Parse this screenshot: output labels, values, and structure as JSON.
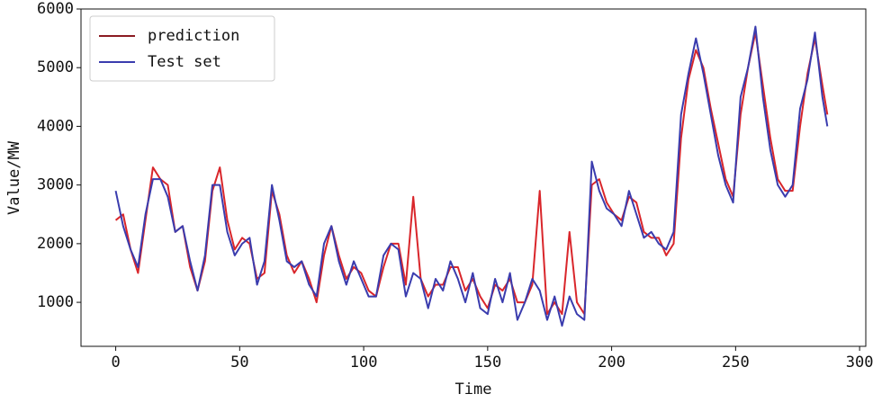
{
  "chart_data": {
    "type": "line",
    "x_label": "Time",
    "y_label": "Value/MW",
    "x": [
      0,
      3,
      6,
      9,
      12,
      15,
      18,
      21,
      24,
      27,
      30,
      33,
      36,
      39,
      42,
      45,
      48,
      51,
      54,
      57,
      60,
      63,
      66,
      69,
      72,
      75,
      78,
      81,
      84,
      87,
      90,
      93,
      96,
      99,
      102,
      105,
      108,
      111,
      114,
      117,
      120,
      123,
      126,
      129,
      132,
      135,
      138,
      141,
      144,
      147,
      150,
      153,
      156,
      159,
      162,
      165,
      168,
      171,
      174,
      177,
      180,
      183,
      186,
      189,
      192,
      195,
      198,
      201,
      204,
      207,
      210,
      213,
      216,
      219,
      222,
      225,
      228,
      231,
      234,
      237,
      240,
      243,
      246,
      249,
      252,
      255,
      258,
      261,
      264,
      267,
      270,
      273,
      276,
      279,
      282,
      285,
      287
    ],
    "series": [
      {
        "name": "prediction",
        "color": "#d9262b",
        "legend_color": "#8b1a22",
        "values": [
          2400,
          2500,
          1900,
          1500,
          2400,
          3300,
          3100,
          3000,
          2200,
          2300,
          1600,
          1200,
          1700,
          2900,
          3300,
          2400,
          1900,
          2100,
          2000,
          1400,
          1500,
          2900,
          2500,
          1800,
          1500,
          1700,
          1400,
          1000,
          1800,
          2300,
          1800,
          1400,
          1600,
          1500,
          1200,
          1100,
          1600,
          2000,
          2000,
          1300,
          2800,
          1400,
          1100,
          1300,
          1300,
          1600,
          1600,
          1200,
          1400,
          1100,
          900,
          1300,
          1200,
          1400,
          1000,
          1000,
          1300,
          2900,
          800,
          1000,
          800,
          2200,
          1000,
          800,
          3000,
          3100,
          2700,
          2500,
          2400,
          2800,
          2700,
          2200,
          2100,
          2100,
          1800,
          2000,
          3800,
          4800,
          5300,
          5000,
          4300,
          3700,
          3100,
          2800,
          4200,
          5000,
          5600,
          4700,
          3800,
          3100,
          2900,
          2900,
          4000,
          4900,
          5500,
          4700,
          4200
        ]
      },
      {
        "name": "Test set",
        "color": "#3a3cae",
        "legend_color": "#3a3cae",
        "values": [
          2900,
          2300,
          1900,
          1600,
          2500,
          3100,
          3100,
          2800,
          2200,
          2300,
          1700,
          1200,
          1800,
          3000,
          3000,
          2200,
          1800,
          2000,
          2100,
          1300,
          1700,
          3000,
          2400,
          1700,
          1600,
          1700,
          1300,
          1100,
          2000,
          2300,
          1700,
          1300,
          1700,
          1400,
          1100,
          1100,
          1800,
          2000,
          1900,
          1100,
          1500,
          1400,
          900,
          1400,
          1200,
          1700,
          1400,
          1000,
          1500,
          900,
          800,
          1400,
          1000,
          1500,
          700,
          1000,
          1400,
          1200,
          700,
          1100,
          600,
          1100,
          800,
          700,
          3400,
          2900,
          2600,
          2500,
          2300,
          2900,
          2500,
          2100,
          2200,
          2000,
          1900,
          2200,
          4200,
          4900,
          5500,
          4900,
          4200,
          3500,
          3000,
          2700,
          4500,
          5000,
          5700,
          4500,
          3600,
          3000,
          2800,
          3000,
          4300,
          4800,
          5600,
          4500,
          4000
        ]
      }
    ],
    "xlim": [
      -14,
      302.5
    ],
    "ylim": [
      250,
      6000
    ],
    "xticks": [
      0,
      50,
      100,
      150,
      200,
      250,
      300
    ],
    "yticks": [
      1000,
      2000,
      3000,
      4000,
      5000,
      6000
    ],
    "legend": "upper left"
  }
}
